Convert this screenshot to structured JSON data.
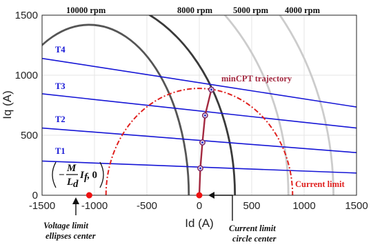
{
  "chart_data": {
    "type": "line",
    "xlabel": "Id (A)",
    "ylabel": "Iq (A)",
    "xlim": [
      -1500,
      1500
    ],
    "ylim": [
      0,
      1500
    ],
    "xticks": [
      "-1500",
      "-1000",
      "-500",
      "0",
      "500",
      "1000",
      "1500"
    ],
    "yticks": [
      "0",
      "500",
      "1000",
      "1500"
    ],
    "grid": true,
    "voltage_limit_ellipses": [
      {
        "name": "10000 rpm",
        "center_x": -1050,
        "radius_x": 950,
        "radius_y": 1420,
        "color": "#555555"
      },
      {
        "name": "8000 rpm",
        "center_x": -1050,
        "radius_x": 1390,
        "radius_y": 1650,
        "color": "#3a3a3a"
      },
      {
        "name": "5000 rpm",
        "center_x": -1050,
        "radius_x": 1900,
        "radius_y": 2050,
        "color": "#cccccc"
      },
      {
        "name": "4000 rpm",
        "center_x": -1050,
        "radius_x": 2330,
        "radius_y": 2400,
        "color": "#cccccc"
      }
    ],
    "torque_lines": [
      {
        "name": "T1",
        "x": [
          -1500,
          1500
        ],
        "y": [
          285,
          185
        ],
        "color": "#1515d6"
      },
      {
        "name": "T2",
        "x": [
          -1500,
          1500
        ],
        "y": [
          560,
          355
        ],
        "color": "#1515d6"
      },
      {
        "name": "T3",
        "x": [
          -1500,
          1500
        ],
        "y": [
          845,
          560
        ],
        "color": "#1515d6"
      },
      {
        "name": "T4",
        "x": [
          -1500,
          1500
        ],
        "y": [
          1140,
          735
        ],
        "color": "#1515d6"
      }
    ],
    "current_limit": {
      "name": "Current limit",
      "radius": 890,
      "color": "#e0201e"
    },
    "mincpt_trajectory": {
      "name": "minCPT trajectory",
      "x": [
        0,
        10,
        30,
        55,
        115
      ],
      "y": [
        0,
        225,
        440,
        665,
        880
      ],
      "color": "#a3283f"
    },
    "annotations": {
      "rpm_labels": [
        "10000 rpm",
        "8000 rpm",
        "5000 rpm",
        "4000 rpm"
      ],
      "torque_labels": [
        "T4",
        "T3",
        "T2",
        "T1"
      ],
      "mincpt_label": "minCPT trajectory",
      "current_limit_label": "Current limit",
      "voltage_center_note": [
        "Voltage limit",
        "ellipses center"
      ],
      "current_center_note": [
        "Current limit",
        "circle center"
      ],
      "formula_numerator": "M",
      "formula_denominator": "L",
      "formula_denominator_sub": "d",
      "formula_factor": "I",
      "formula_factor_sub": "f",
      "formula_tail": ", 0",
      "formula_minus": "−"
    },
    "points": {
      "voltage_center": {
        "x": -1050,
        "y": 0,
        "color": "#ee1111"
      },
      "current_center": {
        "x": 0,
        "y": 0,
        "color": "#ee1111"
      }
    }
  }
}
